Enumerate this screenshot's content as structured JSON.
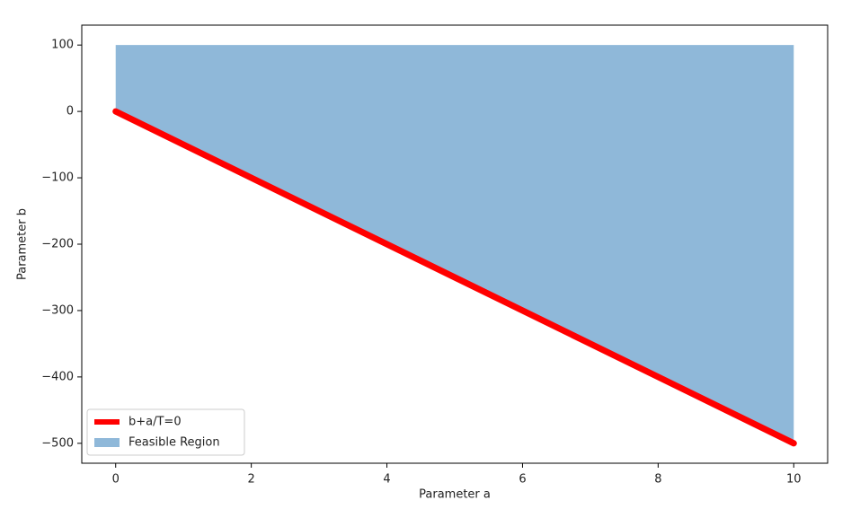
{
  "chart_data": {
    "type": "line",
    "x_label": "Parameter a",
    "y_label": "Parameter b",
    "x": [
      0,
      10
    ],
    "series": [
      {
        "name": "b+a/T=0",
        "color": "#ff0000",
        "values": [
          0,
          -500
        ]
      },
      {
        "name": "Feasible Region",
        "color": "#8fb8d9",
        "type": "area",
        "values": [
          100,
          100
        ],
        "lower": [
          0,
          -500
        ]
      }
    ],
    "xlim": [
      -0.5,
      10.5
    ],
    "ylim": [
      -530,
      130
    ],
    "xticks": [
      0,
      2,
      4,
      6,
      8,
      10
    ],
    "yticks": [
      {
        "value": -500,
        "label": "−500"
      },
      {
        "value": -400,
        "label": "−400"
      },
      {
        "value": -300,
        "label": "−300"
      },
      {
        "value": -200,
        "label": "−200"
      },
      {
        "value": -100,
        "label": "−100"
      },
      0,
      100
    ],
    "grid": false,
    "legend": "lower left"
  }
}
